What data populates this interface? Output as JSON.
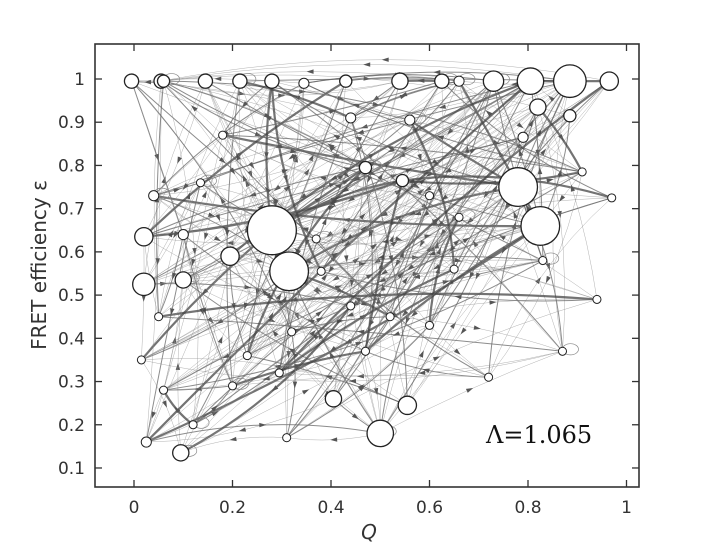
{
  "chart_data": {
    "type": "network",
    "xlabel": "Q",
    "ylabel": "FRET efficiency ε",
    "annotation": "Λ=1.065",
    "xlim": [
      -0.08,
      1.03
    ],
    "ylim": [
      0.07,
      1.07
    ],
    "x_ticks": [
      "0",
      "0.2",
      "0.4",
      "0.6",
      "0.8",
      "1"
    ],
    "x_tick_values": [
      0,
      0.2,
      0.4,
      0.6,
      0.8,
      1.0
    ],
    "y_ticks": [
      "0.1",
      "0.2",
      "0.3",
      "0.4",
      "0.5",
      "0.6",
      "0.7",
      "0.8",
      "0.9",
      "1"
    ],
    "y_tick_values": [
      0.1,
      0.2,
      0.3,
      0.4,
      0.5,
      0.6,
      0.7,
      0.8,
      0.9,
      1.0
    ],
    "nodes": [
      {
        "x": 0.28,
        "y": 0.65,
        "weight": 22
      },
      {
        "x": 0.315,
        "y": 0.555,
        "weight": 17
      },
      {
        "x": 0.78,
        "y": 0.75,
        "weight": 17
      },
      {
        "x": 0.825,
        "y": 0.66,
        "weight": 17
      },
      {
        "x": 0.885,
        "y": 0.995,
        "weight": 14
      },
      {
        "x": 0.805,
        "y": 0.995,
        "weight": 11
      },
      {
        "x": 0.5,
        "y": 0.18,
        "weight": 11
      },
      {
        "x": 0.02,
        "y": 0.525,
        "weight": 9
      },
      {
        "x": 0.02,
        "y": 0.635,
        "weight": 7
      },
      {
        "x": 0.73,
        "y": 0.995,
        "weight": 8
      },
      {
        "x": 0.195,
        "y": 0.59,
        "weight": 7
      },
      {
        "x": 0.965,
        "y": 0.995,
        "weight": 7
      },
      {
        "x": 0.095,
        "y": 0.135,
        "weight": 6
      },
      {
        "x": 0.555,
        "y": 0.245,
        "weight": 7
      },
      {
        "x": 0.405,
        "y": 0.26,
        "weight": 6
      },
      {
        "x": 0.1,
        "y": 0.535,
        "weight": 6
      },
      {
        "x": 0.82,
        "y": 0.935,
        "weight": 6
      },
      {
        "x": 0.54,
        "y": 0.995,
        "weight": 6
      },
      {
        "x": 0.625,
        "y": 0.995,
        "weight": 5
      },
      {
        "x": 0.055,
        "y": 0.995,
        "weight": 5
      },
      {
        "x": 0.145,
        "y": 0.995,
        "weight": 5
      },
      {
        "x": 0.215,
        "y": 0.995,
        "weight": 5
      },
      {
        "x": 0.28,
        "y": 0.995,
        "weight": 5
      },
      {
        "x": -0.005,
        "y": 0.995,
        "weight": 5
      },
      {
        "x": 0.06,
        "y": 0.995,
        "weight": 4
      },
      {
        "x": 0.43,
        "y": 0.995,
        "weight": 4
      },
      {
        "x": 0.885,
        "y": 0.915,
        "weight": 4
      },
      {
        "x": 0.47,
        "y": 0.795,
        "weight": 4
      },
      {
        "x": 0.545,
        "y": 0.765,
        "weight": 4
      },
      {
        "x": 0.44,
        "y": 0.91,
        "weight": 3
      },
      {
        "x": 0.56,
        "y": 0.905,
        "weight": 3
      },
      {
        "x": 0.79,
        "y": 0.865,
        "weight": 3
      },
      {
        "x": 0.025,
        "y": 0.16,
        "weight": 3
      },
      {
        "x": 0.04,
        "y": 0.73,
        "weight": 3
      },
      {
        "x": 0.1,
        "y": 0.64,
        "weight": 3
      },
      {
        "x": 0.32,
        "y": 0.415,
        "weight": 2
      },
      {
        "x": 0.295,
        "y": 0.32,
        "weight": 2
      },
      {
        "x": 0.31,
        "y": 0.17,
        "weight": 2
      },
      {
        "x": 0.72,
        "y": 0.31,
        "weight": 2
      },
      {
        "x": 0.87,
        "y": 0.37,
        "weight": 2
      },
      {
        "x": 0.94,
        "y": 0.49,
        "weight": 2
      },
      {
        "x": 0.97,
        "y": 0.725,
        "weight": 2
      },
      {
        "x": 0.37,
        "y": 0.63,
        "weight": 2
      },
      {
        "x": 0.44,
        "y": 0.475,
        "weight": 2
      },
      {
        "x": 0.6,
        "y": 0.43,
        "weight": 2
      },
      {
        "x": 0.66,
        "y": 0.68,
        "weight": 2
      },
      {
        "x": 0.38,
        "y": 0.555,
        "weight": 2
      },
      {
        "x": 0.23,
        "y": 0.36,
        "weight": 2
      },
      {
        "x": 0.2,
        "y": 0.29,
        "weight": 2
      },
      {
        "x": 0.015,
        "y": 0.35,
        "weight": 2
      },
      {
        "x": 0.05,
        "y": 0.45,
        "weight": 2
      },
      {
        "x": 0.135,
        "y": 0.76,
        "weight": 2
      },
      {
        "x": 0.18,
        "y": 0.87,
        "weight": 2
      },
      {
        "x": 0.65,
        "y": 0.56,
        "weight": 2
      },
      {
        "x": 0.83,
        "y": 0.58,
        "weight": 2
      },
      {
        "x": 0.47,
        "y": 0.37,
        "weight": 2
      },
      {
        "x": 0.52,
        "y": 0.45,
        "weight": 2
      },
      {
        "x": 0.12,
        "y": 0.2,
        "weight": 2
      },
      {
        "x": 0.06,
        "y": 0.28,
        "weight": 2
      },
      {
        "x": 0.345,
        "y": 0.99,
        "weight": 3
      },
      {
        "x": 0.66,
        "y": 0.995,
        "weight": 3
      },
      {
        "x": 0.91,
        "y": 0.785,
        "weight": 2
      },
      {
        "x": 0.6,
        "y": 0.73,
        "weight": 2
      }
    ]
  }
}
